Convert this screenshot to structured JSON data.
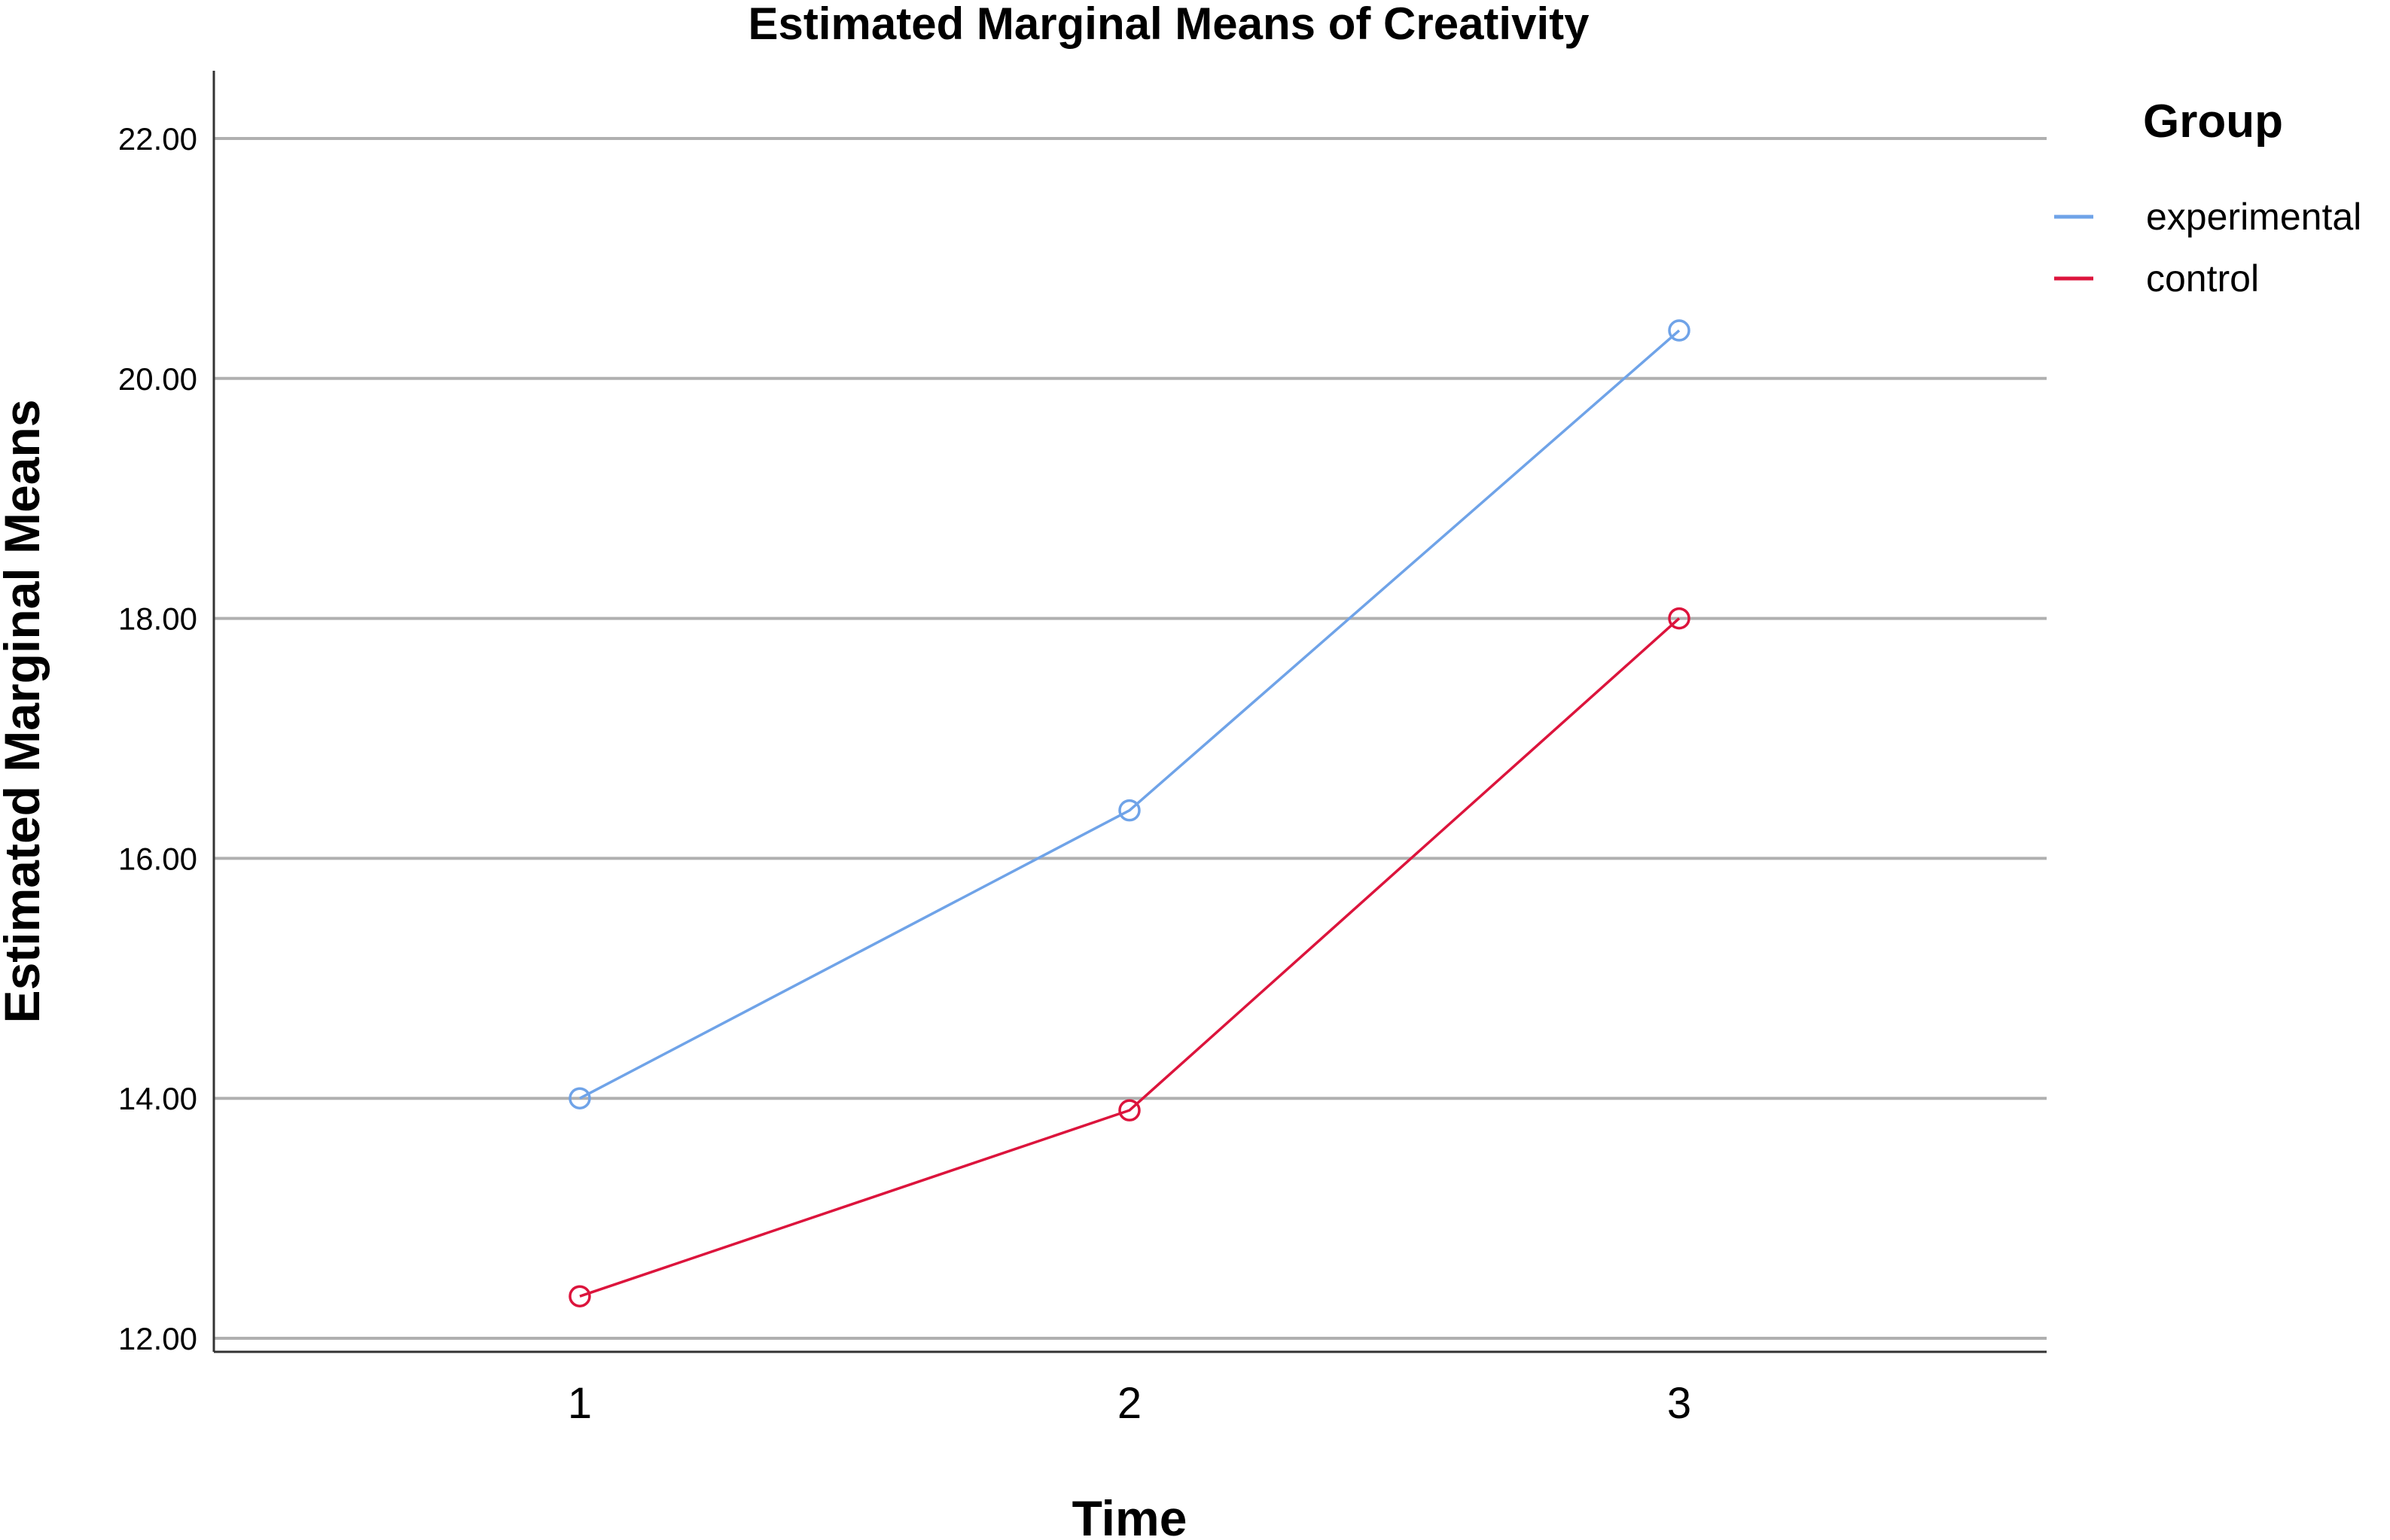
{
  "chart_data": {
    "type": "line",
    "title": "Estimated Marginal Means of Creativity",
    "xlabel": "Time",
    "ylabel": "Estimated Marginal Means",
    "categories": [
      "1",
      "2",
      "3"
    ],
    "ylim": [
      12.0,
      22.0
    ],
    "yticks": [
      "12.00",
      "14.00",
      "16.00",
      "18.00",
      "20.00",
      "22.00"
    ],
    "grid": "horizontal",
    "legend": {
      "title": "Group",
      "placement": "top-right"
    },
    "series": [
      {
        "name": "experimental",
        "color": "#6fa3e8",
        "values": [
          14.0,
          16.4,
          20.4
        ]
      },
      {
        "name": "control",
        "color": "#dc143c",
        "values": [
          12.35,
          13.9,
          18.0
        ]
      }
    ]
  }
}
